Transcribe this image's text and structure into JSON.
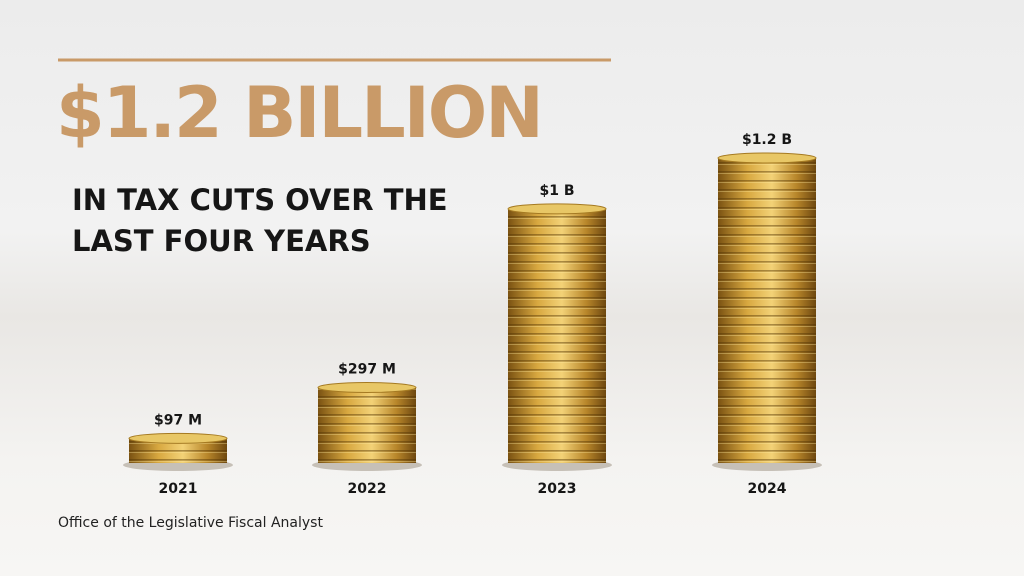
{
  "chart_data": {
    "type": "bar",
    "title": "$1.2 BILLION",
    "subtitle": "IN TAX CUTS OVER THE LAST FOUR YEARS",
    "source": "Office of the Legislative Fiscal Analyst",
    "categories": [
      "2021",
      "2022",
      "2023",
      "2024"
    ],
    "values": [
      97,
      297,
      1000,
      1200
    ],
    "value_labels": [
      "$97 M",
      "$297 M",
      "$1 B",
      "$1.2 B"
    ],
    "color": "#c9982e"
  }
}
